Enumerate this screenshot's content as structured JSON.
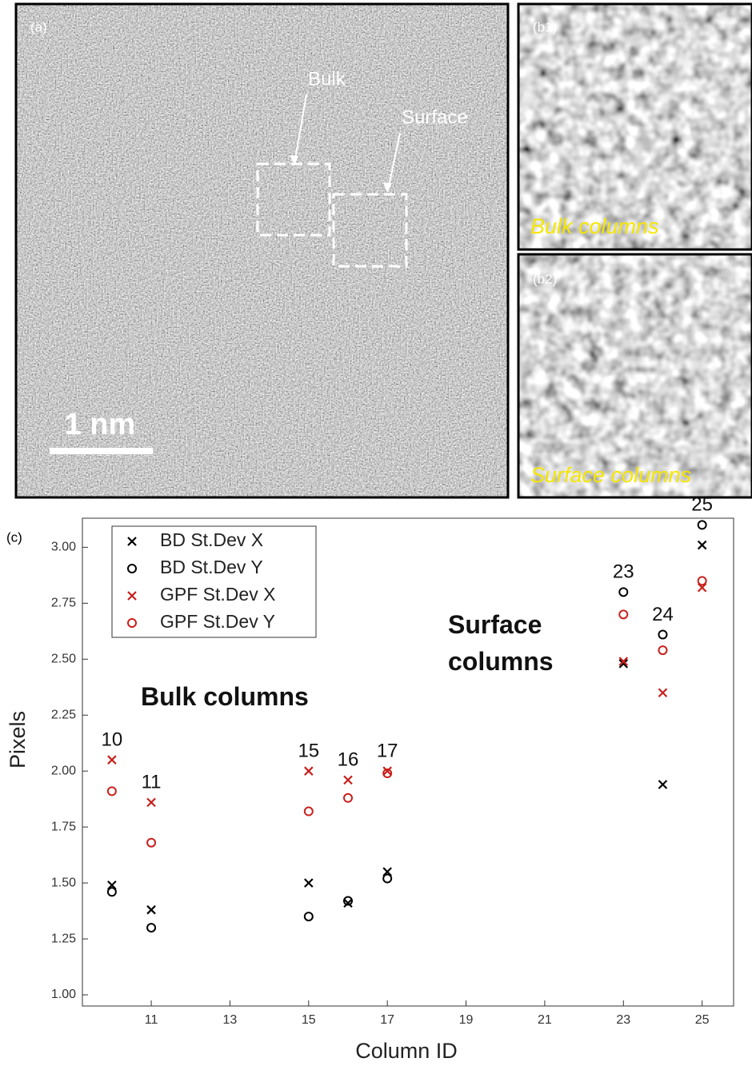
{
  "panels": {
    "a": {
      "label": "(a)",
      "bulk_label": "Bulk",
      "surface_label": "Surface",
      "scale_bar": "1 nm"
    },
    "b1": {
      "label": "(b1)",
      "caption": "Bulk columns"
    },
    "b2": {
      "label": "(b2)",
      "caption": "Surface columns"
    },
    "c": {
      "label": "(c)"
    }
  },
  "chart_data": {
    "type": "scatter",
    "x_label": "Column ID",
    "y_label": "Pixels",
    "x": [
      10,
      11,
      15,
      16,
      17,
      23,
      24,
      25
    ],
    "point_labels": [
      "10",
      "11",
      "15",
      "16",
      "17",
      "23",
      "24",
      "25"
    ],
    "series": [
      {
        "name": "BD St.Dev X",
        "color": "#000000",
        "marker": "x",
        "values": [
          1.49,
          1.38,
          1.5,
          1.41,
          1.55,
          2.48,
          1.94,
          3.01
        ]
      },
      {
        "name": "BD St.Dev Y",
        "color": "#000000",
        "marker": "o",
        "values": [
          1.46,
          1.3,
          1.35,
          1.42,
          1.52,
          2.8,
          2.61,
          3.1
        ]
      },
      {
        "name": "GPF St.Dev X",
        "color": "#c8201c",
        "marker": "x",
        "values": [
          2.05,
          1.86,
          2.0,
          1.96,
          2.0,
          2.49,
          2.35,
          2.82
        ]
      },
      {
        "name": "GPF St.Dev Y",
        "color": "#c8201c",
        "marker": "o",
        "values": [
          1.91,
          1.68,
          1.82,
          1.88,
          1.99,
          2.7,
          2.54,
          2.85
        ]
      }
    ],
    "annotations": [
      "Bulk columns",
      "Surface columns"
    ],
    "xlim": [
      9.25,
      25.8
    ],
    "ylim": [
      0.95,
      3.13
    ],
    "xticks": [
      11,
      13,
      15,
      17,
      19,
      21,
      23,
      25
    ],
    "yticks": [
      {
        "value": 1,
        "label": "1.00"
      },
      {
        "value": 1.25,
        "label": "1.25"
      },
      {
        "value": 1.5,
        "label": "1.50"
      },
      {
        "value": 1.75,
        "label": "1.75"
      },
      {
        "value": 2,
        "label": "2.00"
      },
      {
        "value": 2.25,
        "label": "2.25"
      },
      {
        "value": 2.5,
        "label": "2.50"
      },
      {
        "value": 2.75,
        "label": "2.75"
      },
      {
        "value": 3,
        "label": "3.00"
      }
    ],
    "legend": "upper-left"
  }
}
